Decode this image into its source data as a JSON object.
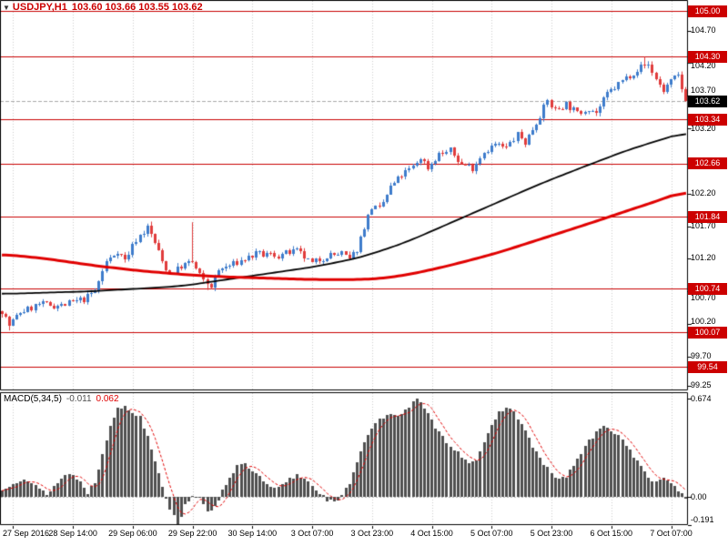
{
  "header": {
    "marker_icon": "▼",
    "symbol_period": "USDJPY,H1",
    "ohlc": "103.60 103.66 103.55 103.62"
  },
  "macd_panel": {
    "label": "MACD(5,34,5)",
    "main_value": "-0.011",
    "signal_value": "0.062"
  },
  "colors": {
    "candle_up": "#3E7CCB",
    "candle_down": "#E03C3C",
    "level_line": "#C80000",
    "bid_line": "#A8A8A8",
    "ma_black": "#000000",
    "ma_red": "#E00000",
    "histogram": "#4F4F4F",
    "signal_line": "#E00000",
    "grid": "#CDCDCD",
    "badge_red_bg": "#CC0000",
    "badge_black_bg": "#000000",
    "badge_text": "#FFFFFF",
    "title_text": "#CC0000",
    "axis_text": "#000000"
  },
  "chart_data": {
    "type": "candlestick",
    "symbol": "USDJPY",
    "timeframe": "H1",
    "ohlc": {
      "open": 103.6,
      "high": 103.66,
      "low": 103.55,
      "close": 103.62
    },
    "bars": 184,
    "seed": 7,
    "noise": 0.11,
    "wick": 0.05,
    "last_close": 103.62,
    "current_price": {
      "v": 103.62,
      "label": "103.62"
    },
    "price_axis": {
      "min": 99.18,
      "max": 105.17,
      "ticks": [
        {
          "v": 104.7,
          "label": "104.70"
        },
        {
          "v": 104.2,
          "label": "104.20"
        },
        {
          "v": 103.7,
          "label": "103.70"
        },
        {
          "v": 103.2,
          "label": "103.20"
        },
        {
          "v": 102.2,
          "label": "102.20"
        },
        {
          "v": 101.7,
          "label": "101.70"
        },
        {
          "v": 101.2,
          "label": "101.20"
        },
        {
          "v": 100.7,
          "label": "100.70"
        },
        {
          "v": 100.2,
          "label": "100.20"
        },
        {
          "v": 99.7,
          "label": "99.70"
        },
        {
          "v": 99.25,
          "label": "99.25"
        }
      ]
    },
    "levels": [
      {
        "v": 105.0,
        "label": "105.00"
      },
      {
        "v": 104.3,
        "label": "104.30"
      },
      {
        "v": 103.34,
        "label": "103.34"
      },
      {
        "v": 102.66,
        "label": "102.66"
      },
      {
        "v": 101.84,
        "label": "101.84"
      },
      {
        "v": 100.74,
        "label": "100.74"
      },
      {
        "v": 100.07,
        "label": "100.07"
      },
      {
        "v": 99.54,
        "label": "99.54"
      }
    ],
    "price_path": [
      [
        0,
        100.4
      ],
      [
        2,
        100.18
      ],
      [
        5,
        100.38
      ],
      [
        10,
        100.5
      ],
      [
        16,
        100.48
      ],
      [
        22,
        100.58
      ],
      [
        25,
        100.7
      ],
      [
        28,
        101.15
      ],
      [
        31,
        101.32
      ],
      [
        33,
        101.18
      ],
      [
        36,
        101.5
      ],
      [
        39,
        101.68
      ],
      [
        41,
        101.45
      ],
      [
        43,
        101.15
      ],
      [
        45,
        100.97
      ],
      [
        48,
        101.08
      ],
      [
        51,
        101.15
      ],
      [
        54,
        100.85
      ],
      [
        56,
        100.78
      ],
      [
        58,
        101.02
      ],
      [
        62,
        101.12
      ],
      [
        68,
        101.27
      ],
      [
        74,
        101.25
      ],
      [
        79,
        101.32
      ],
      [
        83,
        101.12
      ],
      [
        87,
        101.25
      ],
      [
        91,
        101.28
      ],
      [
        93,
        101.18
      ],
      [
        95,
        101.35
      ],
      [
        97,
        101.7
      ],
      [
        99,
        102.0
      ],
      [
        101,
        101.95
      ],
      [
        104,
        102.3
      ],
      [
        107,
        102.48
      ],
      [
        110,
        102.6
      ],
      [
        112,
        102.75
      ],
      [
        114,
        102.6
      ],
      [
        117,
        102.8
      ],
      [
        120,
        102.85
      ],
      [
        123,
        102.65
      ],
      [
        126,
        102.6
      ],
      [
        129,
        102.85
      ],
      [
        132,
        102.95
      ],
      [
        135,
        102.9
      ],
      [
        138,
        103.1
      ],
      [
        140,
        102.98
      ],
      [
        143,
        103.3
      ],
      [
        146,
        103.62
      ],
      [
        148,
        103.48
      ],
      [
        151,
        103.58
      ],
      [
        154,
        103.42
      ],
      [
        157,
        103.52
      ],
      [
        159,
        103.44
      ],
      [
        162,
        103.72
      ],
      [
        165,
        103.88
      ],
      [
        168,
        104.02
      ],
      [
        171,
        104.15
      ],
      [
        173,
        104.18
      ],
      [
        175,
        103.95
      ],
      [
        177,
        103.78
      ],
      [
        179,
        103.92
      ],
      [
        181,
        104.0
      ],
      [
        183,
        103.62
      ]
    ],
    "wick_spikes_high": [
      {
        "bar": 40,
        "price": 101.77
      },
      {
        "bar": 51,
        "price": 101.76
      },
      {
        "bar": 172,
        "price": 104.3
      }
    ],
    "wick_spikes_low": [
      {
        "bar": 2,
        "price": 100.1
      },
      {
        "bar": 55,
        "price": 100.72
      }
    ],
    "ma_black": [
      [
        0,
        100.66
      ],
      [
        24,
        100.7
      ],
      [
        48,
        100.78
      ],
      [
        60,
        100.88
      ],
      [
        72,
        100.98
      ],
      [
        84,
        101.08
      ],
      [
        96,
        101.22
      ],
      [
        108,
        101.45
      ],
      [
        120,
        101.75
      ],
      [
        132,
        102.05
      ],
      [
        144,
        102.35
      ],
      [
        156,
        102.62
      ],
      [
        168,
        102.88
      ],
      [
        176,
        103.02
      ],
      [
        183,
        103.15
      ]
    ],
    "ma_red": [
      [
        0,
        101.27
      ],
      [
        12,
        101.2
      ],
      [
        24,
        101.1
      ],
      [
        36,
        101.02
      ],
      [
        48,
        100.96
      ],
      [
        60,
        100.92
      ],
      [
        72,
        100.9
      ],
      [
        84,
        100.88
      ],
      [
        96,
        100.88
      ],
      [
        102,
        100.9
      ],
      [
        108,
        100.95
      ],
      [
        114,
        101.02
      ],
      [
        120,
        101.1
      ],
      [
        132,
        101.28
      ],
      [
        144,
        101.5
      ],
      [
        156,
        101.72
      ],
      [
        168,
        101.95
      ],
      [
        176,
        102.1
      ],
      [
        183,
        102.25
      ]
    ],
    "time_axis": {
      "ticks": [
        {
          "bar": 3,
          "label": "27 Sep 2016"
        },
        {
          "bar": 19,
          "label": "28 Sep 14:00"
        },
        {
          "bar": 35,
          "label": "29 Sep 06:00"
        },
        {
          "bar": 51,
          "label": "29 Sep 22:00"
        },
        {
          "bar": 67,
          "label": "30 Sep 14:00"
        },
        {
          "bar": 83,
          "label": "3 Oct 07:00"
        },
        {
          "bar": 99,
          "label": "3 Oct 23:00"
        },
        {
          "bar": 115,
          "label": "4 Oct 15:00"
        },
        {
          "bar": 131,
          "label": "5 Oct 07:00"
        },
        {
          "bar": 147,
          "label": "5 Oct 23:00"
        },
        {
          "bar": 163,
          "label": "6 Oct 15:00"
        },
        {
          "bar": 179,
          "label": "7 Oct 07:00"
        }
      ]
    },
    "macd": {
      "main": -0.011,
      "seed": 13,
      "noise": 0.03,
      "range": {
        "min": -0.193,
        "max": 0.718
      },
      "ticks": [
        {
          "v": 0.674,
          "label": "0.674"
        },
        {
          "v": 0,
          "label": "0.00"
        },
        {
          "v": -0.191,
          "label": "-0.191"
        }
      ],
      "force": [
        {
          "bar": 47,
          "v": -0.191
        },
        {
          "bar": 111,
          "v": 0.674
        }
      ],
      "histogram_path": [
        [
          0,
          0.04
        ],
        [
          3,
          0.1
        ],
        [
          6,
          0.13
        ],
        [
          10,
          0.05
        ],
        [
          12,
          0.02
        ],
        [
          15,
          0.1
        ],
        [
          18,
          0.17
        ],
        [
          21,
          0.1
        ],
        [
          23,
          0.03
        ],
        [
          25,
          0.1
        ],
        [
          27,
          0.3
        ],
        [
          29,
          0.5
        ],
        [
          31,
          0.6
        ],
        [
          33,
          0.62
        ],
        [
          35,
          0.58
        ],
        [
          37,
          0.55
        ],
        [
          39,
          0.42
        ],
        [
          41,
          0.25
        ],
        [
          43,
          0.08
        ],
        [
          45,
          -0.08
        ],
        [
          47,
          -0.19
        ],
        [
          49,
          -0.06
        ],
        [
          51,
          0.02
        ],
        [
          53,
          -0.02
        ],
        [
          55,
          -0.11
        ],
        [
          57,
          -0.06
        ],
        [
          59,
          0.04
        ],
        [
          61,
          0.14
        ],
        [
          63,
          0.21
        ],
        [
          65,
          0.22
        ],
        [
          67,
          0.18
        ],
        [
          69,
          0.13
        ],
        [
          71,
          0.08
        ],
        [
          73,
          0.05
        ],
        [
          75,
          0.08
        ],
        [
          77,
          0.12
        ],
        [
          79,
          0.15
        ],
        [
          81,
          0.13
        ],
        [
          83,
          0.08
        ],
        [
          85,
          0.03
        ],
        [
          87,
          -0.02
        ],
        [
          89,
          -0.04
        ],
        [
          91,
          0.0
        ],
        [
          93,
          0.1
        ],
        [
          95,
          0.25
        ],
        [
          97,
          0.38
        ],
        [
          99,
          0.48
        ],
        [
          101,
          0.53
        ],
        [
          103,
          0.55
        ],
        [
          105,
          0.56
        ],
        [
          107,
          0.58
        ],
        [
          109,
          0.62
        ],
        [
          111,
          0.674
        ],
        [
          113,
          0.6
        ],
        [
          115,
          0.52
        ],
        [
          117,
          0.44
        ],
        [
          119,
          0.38
        ],
        [
          121,
          0.33
        ],
        [
          123,
          0.28
        ],
        [
          125,
          0.24
        ],
        [
          127,
          0.26
        ],
        [
          129,
          0.36
        ],
        [
          131,
          0.48
        ],
        [
          133,
          0.58
        ],
        [
          135,
          0.62
        ],
        [
          137,
          0.58
        ],
        [
          139,
          0.5
        ],
        [
          141,
          0.4
        ],
        [
          143,
          0.3
        ],
        [
          145,
          0.22
        ],
        [
          147,
          0.16
        ],
        [
          149,
          0.12
        ],
        [
          151,
          0.14
        ],
        [
          153,
          0.22
        ],
        [
          155,
          0.3
        ],
        [
          157,
          0.38
        ],
        [
          159,
          0.44
        ],
        [
          161,
          0.48
        ],
        [
          163,
          0.46
        ],
        [
          165,
          0.42
        ],
        [
          167,
          0.36
        ],
        [
          169,
          0.28
        ],
        [
          171,
          0.2
        ],
        [
          173,
          0.14
        ],
        [
          175,
          0.1
        ],
        [
          177,
          0.12
        ],
        [
          179,
          0.1
        ],
        [
          181,
          0.05
        ],
        [
          183,
          -0.011
        ]
      ]
    }
  }
}
